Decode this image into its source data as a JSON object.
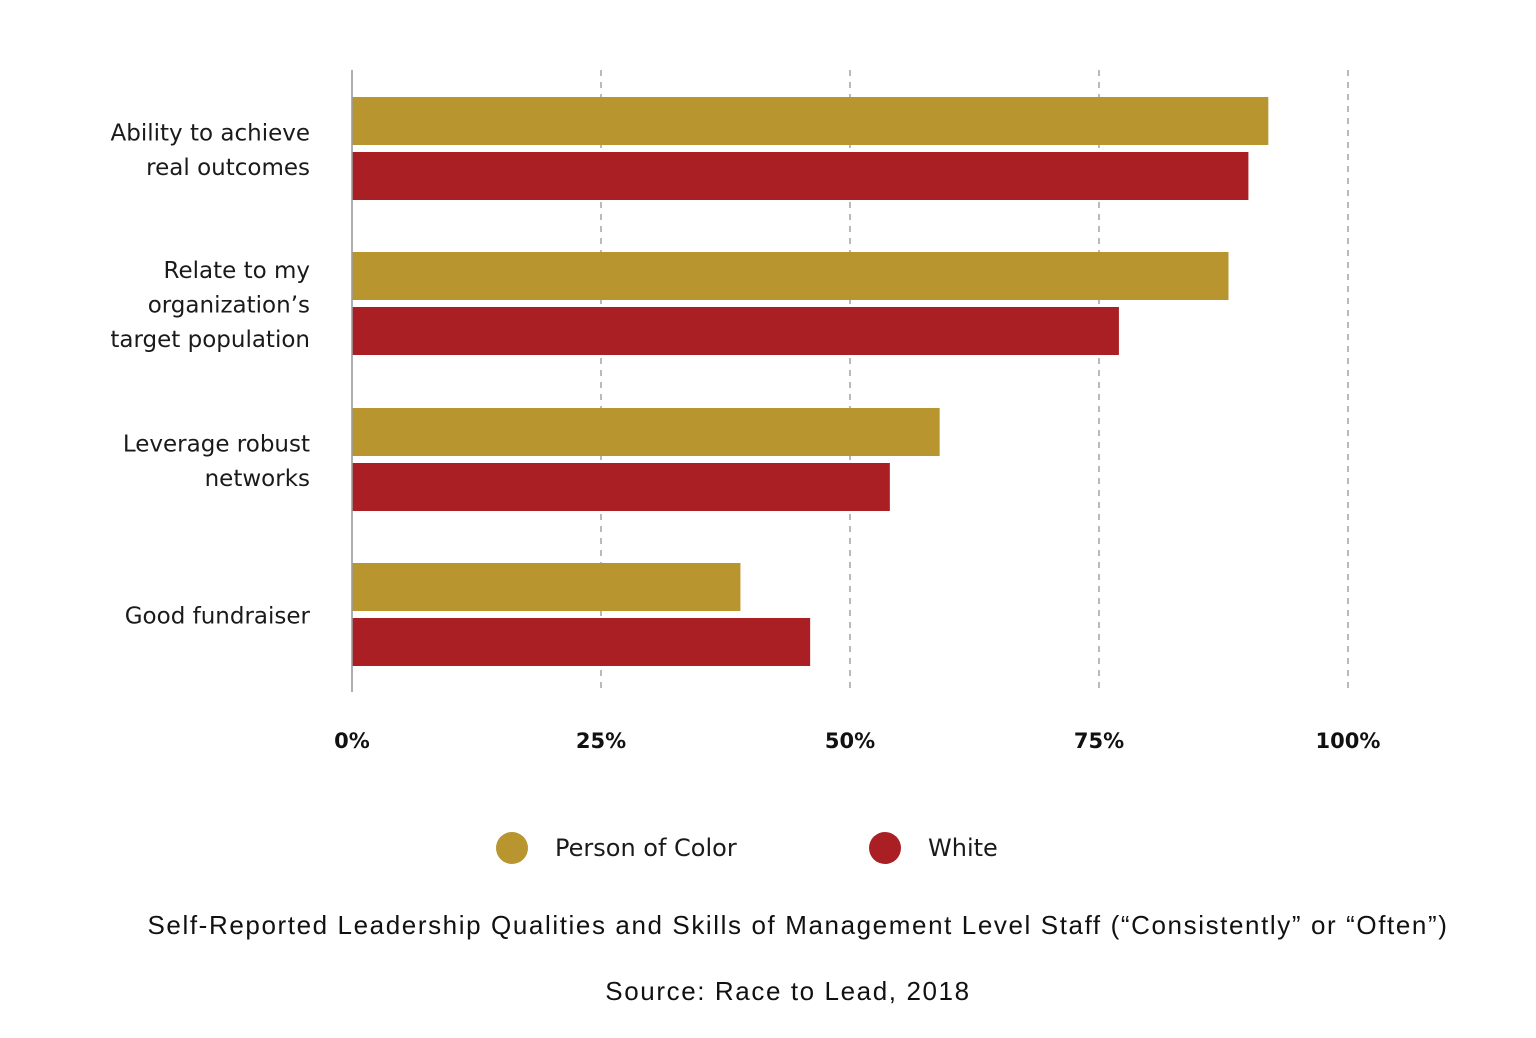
{
  "chart_data": {
    "type": "bar",
    "orientation": "horizontal",
    "title": "Self-Reported Leadership Qualities and Skills of Management Level Staff (“Consistently” or “Often”)",
    "source": "Source: Race to Lead, 2018",
    "categories": [
      [
        "Ability to achieve",
        "real outcomes"
      ],
      [
        "Relate to my",
        "organization’s",
        "target population"
      ],
      [
        "Leverage robust",
        "networks"
      ],
      [
        "Good fundraiser"
      ]
    ],
    "series": [
      {
        "name": "Person of Color",
        "color": "#B99530",
        "values": [
          92,
          88,
          59,
          39
        ]
      },
      {
        "name": "White",
        "color": "#A91F24",
        "values": [
          90,
          77,
          54,
          46
        ]
      }
    ],
    "xlim": [
      0,
      100
    ],
    "x_ticks": [
      0,
      25,
      50,
      75,
      100
    ],
    "x_tick_labels": [
      "0%",
      "25%",
      "50%",
      "75%",
      "100%"
    ],
    "grid": "vertical dashed",
    "legend_position": "bottom"
  }
}
